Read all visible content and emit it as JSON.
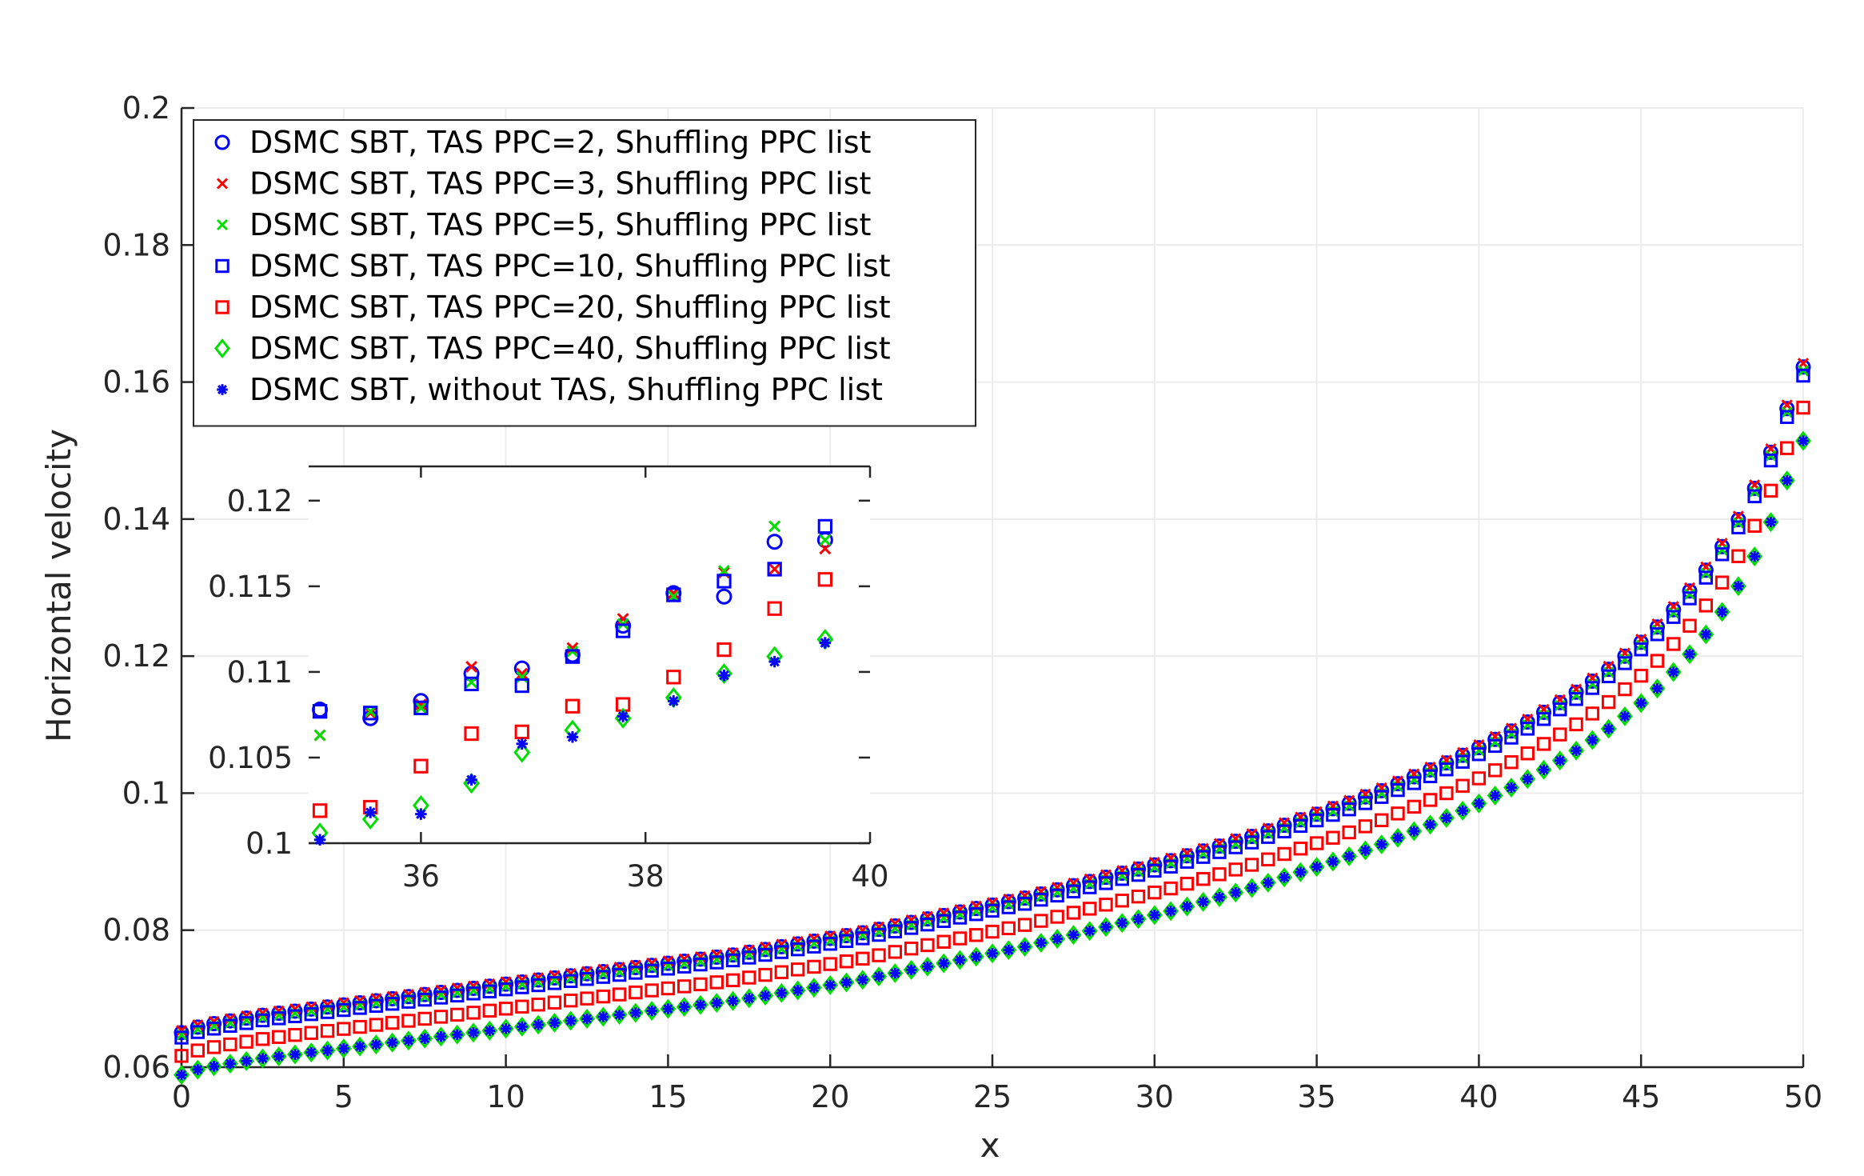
{
  "chart_data": [
    {
      "id": "main",
      "type": "scatter",
      "title": "",
      "xlabel": "x",
      "ylabel": "Horizontal velocity",
      "xlim": [
        0,
        50
      ],
      "ylim": [
        0.06,
        0.2
      ],
      "xticks": [
        0,
        5,
        10,
        15,
        20,
        25,
        30,
        35,
        40,
        45,
        50
      ],
      "xtick_labels": [
        "0",
        "5",
        "10",
        "15",
        "20",
        "25",
        "30",
        "35",
        "40",
        "45",
        "50"
      ],
      "yticks": [
        0.06,
        0.08,
        0.1,
        0.12,
        0.14,
        0.16,
        0.18,
        0.2
      ],
      "ytick_labels": [
        "0.06",
        "0.08",
        "0.1",
        "0.12",
        "0.14",
        "0.16",
        "0.18",
        "0.2"
      ],
      "grid": true,
      "legend_position": "top-left",
      "series": [
        {
          "name": "DSMC SBT, TAS PPC=2, Shuffling PPC list",
          "marker": "circle",
          "color": "#0000FF",
          "offset": 0.0015
        },
        {
          "name": "DSMC SBT, TAS PPC=3, Shuffling PPC list",
          "marker": "x",
          "color": "#FF0000",
          "offset": 0.0018
        },
        {
          "name": "DSMC SBT, TAS PPC=5, Shuffling PPC list",
          "marker": "x",
          "color": "#00DD00",
          "offset": 0.0012
        },
        {
          "name": "DSMC SBT, TAS PPC=10, Shuffling PPC list",
          "marker": "square",
          "color": "#0000FF",
          "offset": 0.0008
        },
        {
          "name": "DSMC SBT, TAS PPC=20, Shuffling PPC list",
          "marker": "square",
          "color": "#FF0000",
          "offset": -0.0018
        },
        {
          "name": "DSMC SBT, TAS PPC=40, Shuffling PPC list",
          "marker": "diamond",
          "color": "#00DD00",
          "offset": -0.0045
        },
        {
          "name": "DSMC SBT, without TAS, Shuffling PPC list",
          "marker": "asterisk",
          "color": "#0000FF",
          "offset": -0.0045
        }
      ],
      "x_values": [
        0,
        0.5,
        1,
        1.5,
        2,
        2.5,
        3,
        3.5,
        4,
        4.5,
        5,
        5.5,
        6,
        6.5,
        7,
        7.5,
        8,
        8.5,
        9,
        9.5,
        10,
        10.5,
        11,
        11.5,
        12,
        12.5,
        13,
        13.5,
        14,
        14.5,
        15,
        15.5,
        16,
        16.5,
        17,
        17.5,
        18,
        18.5,
        19,
        19.5,
        20,
        20.5,
        21,
        21.5,
        22,
        22.5,
        23,
        23.5,
        24,
        24.5,
        25,
        25.5,
        26,
        26.5,
        27,
        27.5,
        28,
        28.5,
        29,
        29.5,
        30,
        30.5,
        31,
        31.5,
        32,
        32.5,
        33,
        33.5,
        34,
        34.5,
        35,
        35.5,
        36,
        36.5,
        37,
        37.5,
        38,
        38.5,
        39,
        39.5,
        40,
        40.5,
        41,
        41.5,
        42,
        42.5,
        43,
        43.5,
        44,
        44.5,
        45,
        45.5,
        46,
        46.5,
        47,
        47.5,
        48,
        48.5,
        49,
        49.5,
        50
      ],
      "baseline_y": [
        0.0635,
        0.0643,
        0.0648,
        0.0652,
        0.0656,
        0.066,
        0.0663,
        0.0666,
        0.0669,
        0.0672,
        0.0675,
        0.0678,
        0.0681,
        0.0684,
        0.0687,
        0.069,
        0.0693,
        0.0696,
        0.0699,
        0.0702,
        0.0705,
        0.0708,
        0.0711,
        0.0714,
        0.0717,
        0.072,
        0.0723,
        0.0726,
        0.0729,
        0.0732,
        0.0735,
        0.0738,
        0.0741,
        0.0744,
        0.0747,
        0.0751,
        0.0755,
        0.0759,
        0.0763,
        0.0767,
        0.0771,
        0.0775,
        0.0779,
        0.0784,
        0.0789,
        0.0794,
        0.0799,
        0.0804,
        0.0809,
        0.0814,
        0.0819,
        0.0824,
        0.0829,
        0.0835,
        0.0841,
        0.0847,
        0.0853,
        0.0859,
        0.0865,
        0.0871,
        0.0877,
        0.0883,
        0.089,
        0.0897,
        0.0904,
        0.0911,
        0.0918,
        0.0926,
        0.0934,
        0.0942,
        0.095,
        0.0958,
        0.0966,
        0.0975,
        0.0984,
        0.0994,
        0.1004,
        0.1014,
        0.1024,
        0.1035,
        0.1046,
        0.1058,
        0.107,
        0.1083,
        0.1097,
        0.1111,
        0.1126,
        0.1142,
        0.1159,
        0.1178,
        0.1198,
        0.122,
        0.1245,
        0.1272,
        0.1302,
        0.1336,
        0.1375,
        0.142,
        0.1472,
        0.1535,
        0.1595
      ]
    },
    {
      "id": "inset",
      "type": "scatter",
      "title": "",
      "xlim": [
        35,
        40
      ],
      "ylim": [
        0.1,
        0.122
      ],
      "xticks": [
        36,
        38,
        40
      ],
      "xtick_labels": [
        "36",
        "38",
        "40"
      ],
      "yticks": [
        0.1,
        0.105,
        0.11,
        0.115,
        0.12
      ],
      "ytick_labels": [
        "0.1",
        "0.105",
        "0.11",
        "0.115",
        "0.12"
      ],
      "x_values": [
        35.1,
        35.55,
        36,
        36.45,
        36.9,
        37.35,
        37.8,
        38.25,
        38.7,
        39.15,
        39.6
      ],
      "series": [
        {
          "name": "DSMC SBT, TAS PPC=2, Shuffling PPC list",
          "values": [
            0.1078,
            0.1073,
            0.1083,
            0.1099,
            0.1102,
            0.111,
            0.1127,
            0.1146,
            0.1144,
            0.1176,
            0.1177
          ]
        },
        {
          "name": "DSMC SBT, TAS PPC=3, Shuffling PPC list",
          "values": [
            0.1063,
            0.1076,
            0.1081,
            0.1103,
            0.1099,
            0.1114,
            0.1131,
            0.1146,
            0.1158,
            0.116,
            0.1172
          ]
        },
        {
          "name": "DSMC SBT, TAS PPC=5, Shuffling PPC list",
          "values": [
            0.1063,
            0.1077,
            0.1079,
            0.1094,
            0.1097,
            0.1112,
            0.1128,
            0.1144,
            0.1159,
            0.1185,
            0.1177
          ]
        },
        {
          "name": "DSMC SBT, TAS PPC=10, Shuffling PPC list",
          "values": [
            0.1077,
            0.1076,
            0.1079,
            0.1093,
            0.1092,
            0.1109,
            0.1124,
            0.1145,
            0.1153,
            0.116,
            0.1185
          ]
        },
        {
          "name": "DSMC SBT, TAS PPC=20, Shuffling PPC list",
          "values": [
            0.1019,
            0.1021,
            0.1045,
            0.1064,
            0.1065,
            0.108,
            0.1081,
            0.1097,
            0.1113,
            0.1137,
            0.1154
          ]
        },
        {
          "name": "DSMC SBT, TAS PPC=40, Shuffling PPC list",
          "values": [
            0.1006,
            0.1014,
            0.1022,
            0.1035,
            0.1053,
            0.1066,
            0.1073,
            0.1085,
            0.1099,
            0.1109,
            0.1119
          ]
        },
        {
          "name": "DSMC SBT, without TAS, Shuffling PPC list",
          "values": [
            0.1002,
            0.1018,
            0.1017,
            0.1037,
            0.1058,
            0.1062,
            0.1074,
            0.1083,
            0.1098,
            0.1106,
            0.1117
          ]
        }
      ]
    }
  ]
}
